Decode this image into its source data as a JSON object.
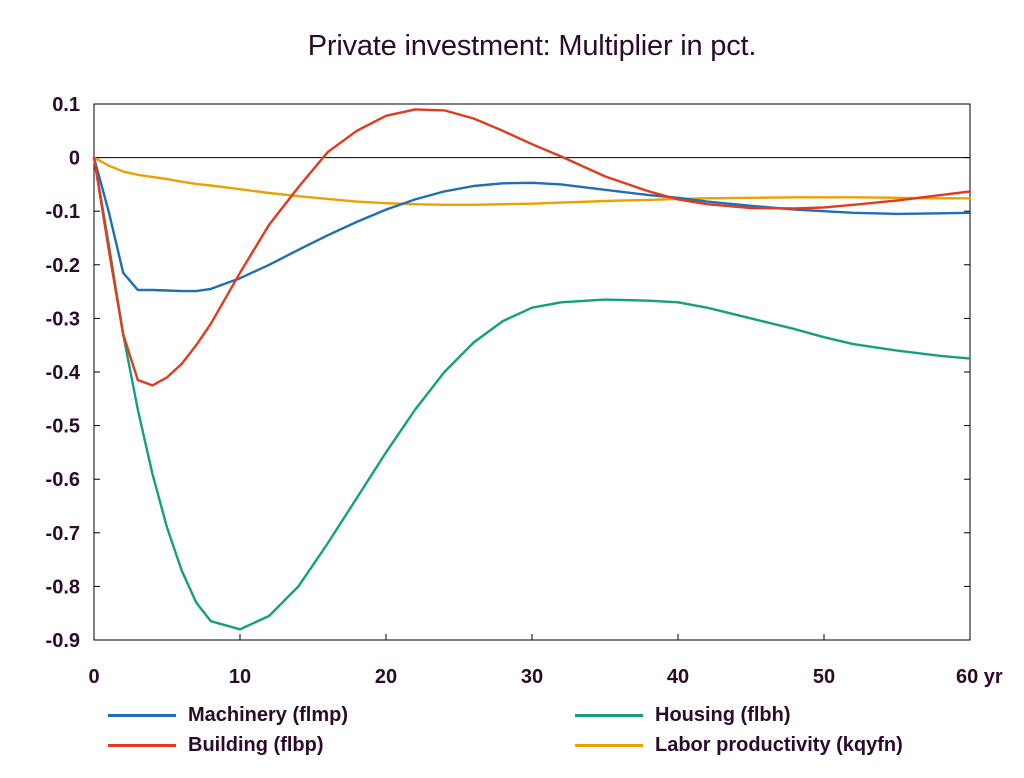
{
  "chart_data": {
    "type": "line",
    "title": "Private investment: Multiplier in pct.",
    "xlabel": "",
    "ylabel": "",
    "x_unit_label": "yr",
    "xlim": [
      0,
      60
    ],
    "ylim": [
      -0.9,
      0.1
    ],
    "x_ticks": [
      0,
      10,
      20,
      30,
      40,
      50,
      60
    ],
    "x_tick_labels": [
      "0",
      "10",
      "20",
      "30",
      "40",
      "50",
      "60 yr"
    ],
    "y_ticks": [
      0.1,
      0,
      -0.1,
      -0.2,
      -0.3,
      -0.4,
      -0.5,
      -0.6,
      -0.7,
      -0.8,
      -0.9
    ],
    "y_tick_labels": [
      "0.1",
      "0",
      "-0.1",
      "-0.2",
      "-0.3",
      "-0.4",
      "-0.5",
      "-0.6",
      "-0.7",
      "-0.8",
      "-0.9"
    ],
    "grid": false,
    "zero_line": true,
    "legend_position": "bottom",
    "x": [
      0,
      1,
      2,
      3,
      4,
      5,
      6,
      7,
      8,
      10,
      12,
      14,
      16,
      18,
      20,
      22,
      24,
      26,
      28,
      30,
      32,
      35,
      38,
      40,
      42,
      45,
      48,
      50,
      52,
      55,
      58,
      60
    ],
    "series": [
      {
        "name": "Machinery (flmp)",
        "color": "#1f6fb5",
        "values": [
          0,
          -0.1,
          -0.215,
          -0.247,
          -0.247,
          -0.248,
          -0.249,
          -0.249,
          -0.245,
          -0.225,
          -0.2,
          -0.172,
          -0.145,
          -0.12,
          -0.097,
          -0.078,
          -0.063,
          -0.053,
          -0.048,
          -0.047,
          -0.05,
          -0.06,
          -0.07,
          -0.075,
          -0.082,
          -0.09,
          -0.097,
          -0.1,
          -0.103,
          -0.105,
          -0.104,
          -0.103
        ]
      },
      {
        "name": "Housing (flbh)",
        "color": "#15a07c",
        "values": [
          0,
          -0.16,
          -0.33,
          -0.47,
          -0.59,
          -0.69,
          -0.77,
          -0.83,
          -0.865,
          -0.88,
          -0.855,
          -0.8,
          -0.72,
          -0.635,
          -0.55,
          -0.47,
          -0.4,
          -0.345,
          -0.305,
          -0.28,
          -0.27,
          -0.265,
          -0.267,
          -0.27,
          -0.28,
          -0.3,
          -0.32,
          -0.335,
          -0.348,
          -0.36,
          -0.37,
          -0.375
        ]
      },
      {
        "name": "Building (flbp)",
        "color": "#e23a1e",
        "values": [
          0,
          -0.17,
          -0.33,
          -0.415,
          -0.425,
          -0.41,
          -0.385,
          -0.35,
          -0.31,
          -0.215,
          -0.125,
          -0.055,
          0.01,
          0.05,
          0.078,
          0.09,
          0.088,
          0.073,
          0.05,
          0.025,
          0.002,
          -0.035,
          -0.063,
          -0.078,
          -0.087,
          -0.094,
          -0.095,
          -0.093,
          -0.088,
          -0.08,
          -0.07,
          -0.063
        ]
      },
      {
        "name": "Labor productivity (kqyfn)",
        "color": "#eba100",
        "values": [
          0,
          -0.015,
          -0.026,
          -0.032,
          -0.036,
          -0.04,
          -0.045,
          -0.049,
          -0.052,
          -0.059,
          -0.066,
          -0.072,
          -0.077,
          -0.082,
          -0.085,
          -0.087,
          -0.088,
          -0.088,
          -0.087,
          -0.086,
          -0.084,
          -0.081,
          -0.079,
          -0.077,
          -0.076,
          -0.075,
          -0.074,
          -0.074,
          -0.074,
          -0.075,
          -0.076,
          -0.076
        ]
      }
    ]
  }
}
